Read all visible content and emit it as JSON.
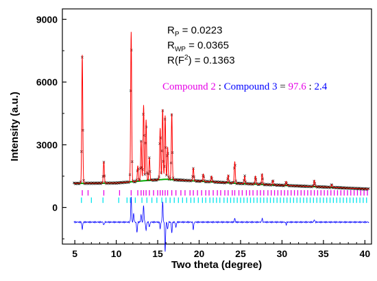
{
  "chart_data": {
    "type": "line",
    "xlabel": "Two theta (degree)",
    "ylabel": "Intensity (a.u.)",
    "xlim": [
      3.5,
      40.8
    ],
    "ylim": [
      -1750,
      9500
    ],
    "x_ticks": [
      5,
      10,
      15,
      20,
      25,
      30,
      35,
      40
    ],
    "y_ticks": [
      0,
      3000,
      6000,
      9000
    ],
    "background_level": 1150,
    "difference_offset": -700,
    "background_curve": [
      [
        3.5,
        1150
      ],
      [
        10,
        1170
      ],
      [
        14,
        1300
      ],
      [
        16,
        1350
      ],
      [
        20,
        1260
      ],
      [
        25,
        1150
      ],
      [
        30,
        1060
      ],
      [
        35,
        980
      ],
      [
        40.5,
        880
      ]
    ],
    "peaks": [
      [
        5.9,
        7300
      ],
      [
        8.5,
        2200
      ],
      [
        11.8,
        8400
      ],
      [
        12.6,
        2000
      ],
      [
        13.0,
        3200
      ],
      [
        13.3,
        4900
      ],
      [
        13.6,
        4200
      ],
      [
        14.0,
        2400
      ],
      [
        15.3,
        3800
      ],
      [
        15.6,
        4700
      ],
      [
        15.9,
        4400
      ],
      [
        16.2,
        2900
      ],
      [
        16.7,
        4500
      ],
      [
        19.3,
        1900
      ],
      [
        20.5,
        1600
      ],
      [
        21.5,
        1500
      ],
      [
        23.5,
        1550
      ],
      [
        24.3,
        2200
      ],
      [
        25.5,
        1500
      ],
      [
        26.8,
        1500
      ],
      [
        27.6,
        1600
      ],
      [
        28.9,
        1300
      ],
      [
        30.5,
        1250
      ],
      [
        33.9,
        1300
      ],
      [
        36.0,
        1100
      ]
    ],
    "phase_ticks": [
      {
        "name": "Compound 2",
        "color": "#e600e6",
        "y": 700,
        "positions": [
          5.9,
          6.6,
          8.5,
          10.4,
          11.8,
          12.6,
          13.0,
          13.3,
          13.6,
          14.0,
          14.5,
          15.0,
          15.3,
          15.6,
          15.9,
          16.2,
          16.7,
          17.2,
          17.8,
          18.3,
          18.9,
          19.3,
          19.8,
          20.3,
          20.8,
          21.2,
          21.7,
          22.2,
          22.6,
          23.1,
          23.5,
          24.0,
          24.3,
          24.8,
          25.2,
          25.7,
          26.1,
          26.5,
          27.0,
          27.4,
          27.8,
          28.3,
          28.7,
          29.1,
          29.5,
          29.9,
          30.3,
          30.7,
          31.1,
          31.5,
          31.9,
          32.3,
          32.7,
          33.1,
          33.5,
          33.9,
          34.3,
          34.7,
          35.1,
          35.5,
          35.9,
          36.3,
          36.7,
          37.1,
          37.5,
          37.9,
          38.3,
          38.7,
          39.1,
          39.5,
          39.9,
          40.3
        ]
      },
      {
        "name": "Compound 3",
        "color": "#00e5ee",
        "y": 350,
        "positions": [
          5.8,
          7.0,
          8.4,
          10.3,
          11.3,
          11.7,
          12.3,
          13.1,
          13.7,
          14.3,
          14.9,
          15.5,
          16.0,
          16.5,
          17.0,
          17.5,
          18.0,
          18.5,
          19.0,
          19.4,
          19.9,
          20.4,
          20.8,
          21.3,
          21.7,
          22.1,
          22.5,
          23.0,
          23.4,
          23.8,
          24.2,
          24.6,
          25.0,
          25.4,
          25.8,
          26.2,
          26.6,
          27.0,
          27.4,
          27.8,
          28.2,
          28.6,
          29.0,
          29.4,
          29.8,
          30.2,
          30.6,
          31.0,
          31.4,
          31.8,
          32.2,
          32.6,
          33.0,
          33.4,
          33.8,
          34.2,
          34.6,
          35.0,
          35.4,
          35.8,
          36.2,
          36.6,
          37.0,
          37.4,
          37.8,
          38.2,
          38.6,
          39.0,
          39.4,
          39.8,
          40.2
        ]
      }
    ],
    "difference_spikes": [
      [
        5.9,
        -350
      ],
      [
        8.5,
        -150
      ],
      [
        11.8,
        1200
      ],
      [
        12.1,
        400
      ],
      [
        12.5,
        -500
      ],
      [
        13.0,
        350
      ],
      [
        13.3,
        800
      ],
      [
        13.6,
        -400
      ],
      [
        14.0,
        -250
      ],
      [
        15.3,
        -300
      ],
      [
        15.6,
        950
      ],
      [
        15.9,
        -1400
      ],
      [
        16.2,
        -350
      ],
      [
        16.7,
        -500
      ],
      [
        17.2,
        -250
      ],
      [
        19.3,
        -350
      ],
      [
        24.3,
        180
      ],
      [
        27.6,
        180
      ],
      [
        30.5,
        -120
      ],
      [
        33.9,
        120
      ]
    ],
    "series_colors": {
      "observed": "#000000",
      "calculated": "#ff0000",
      "background": "#00aa00",
      "difference": "#0000ff"
    },
    "annotations": {
      "rp_letter": "R",
      "rp_sub": "P",
      "rp_value": " = 0.0223",
      "rwp_letter": "R",
      "rwp_sub": "WP",
      "rwp_value": " = 0.0365",
      "rf2_prefix": "R(F",
      "rf2_sup": "2",
      "rf2_value": ") = 0.1363",
      "ratio_c2": "Compound 2",
      "ratio_colon1": " : ",
      "ratio_c3": "Compound 3",
      "ratio_eq": " = ",
      "ratio_v2": "97.6",
      "ratio_colon2": " : ",
      "ratio_v3": "2.4",
      "ratio_color_c2": "#e600e6",
      "ratio_color_c3": "#0000ff"
    }
  }
}
